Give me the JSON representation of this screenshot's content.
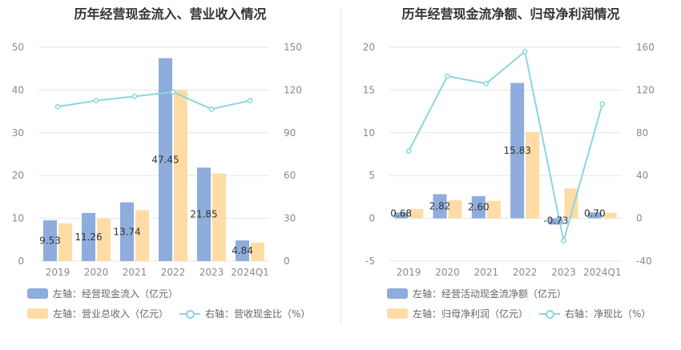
{
  "colors": {
    "bar1": "#8eacdc",
    "bar2": "#ffdca6",
    "line": "#8ad7de",
    "grid": "#e6e6e6",
    "tick": "#8a8a8a"
  },
  "chart_data": [
    {
      "type": "bar",
      "title": "历年经营现金流入、营业收入情况",
      "categories": [
        "2019",
        "2020",
        "2021",
        "2022",
        "2023",
        "2024Q1"
      ],
      "y_left": {
        "ticks": [
          "0",
          "10",
          "20",
          "30",
          "40",
          "50"
        ],
        "lim": [
          0,
          50
        ]
      },
      "y_right": {
        "ticks": [
          "0",
          "30",
          "60",
          "90",
          "120",
          "150"
        ],
        "lim": [
          0,
          150
        ]
      },
      "series": [
        {
          "name": "左轴：经营现金流入（亿元）",
          "axis": "left",
          "kind": "bar",
          "color": "#8eacdc",
          "values": [
            9.53,
            11.26,
            13.74,
            47.45,
            21.85,
            4.84
          ],
          "labels": [
            "9.53",
            "11.26",
            "13.74",
            "47.45",
            "21.85",
            "4.84"
          ]
        },
        {
          "name": "左轴：营业总收入（亿元）",
          "axis": "left",
          "kind": "bar",
          "color": "#ffdca6",
          "values": [
            8.8,
            10.0,
            11.9,
            40.0,
            20.5,
            4.3
          ]
        },
        {
          "name": "右轴：营收现金比（%）",
          "axis": "right",
          "kind": "line",
          "color": "#8ad7de",
          "values": [
            108.3,
            112.6,
            115.5,
            118.6,
            106.6,
            112.6
          ]
        }
      ],
      "legend": {
        "position": "bottom-left"
      }
    },
    {
      "type": "bar",
      "title": "历年经营现金流净额、归母净利润情况",
      "categories": [
        "2019",
        "2020",
        "2021",
        "2022",
        "2023",
        "2024Q1"
      ],
      "y_left": {
        "ticks": [
          "-5",
          "0",
          "5",
          "10",
          "15",
          "20"
        ],
        "lim": [
          -5,
          20
        ]
      },
      "y_right": {
        "ticks": [
          "-40",
          "0",
          "40",
          "80",
          "120",
          "160"
        ],
        "lim": [
          -40,
          160
        ]
      },
      "series": [
        {
          "name": "左轴：经营活动现金流净额（亿元）",
          "axis": "left",
          "kind": "bar",
          "color": "#8eacdc",
          "values": [
            0.68,
            2.82,
            2.6,
            15.83,
            -0.73,
            0.7
          ],
          "labels": [
            "0.68",
            "2.82",
            "2.60",
            "15.83",
            "-0.73",
            "0.70"
          ]
        },
        {
          "name": "左轴：归母净利润（亿元）",
          "axis": "left",
          "kind": "bar",
          "color": "#ffdca6",
          "values": [
            1.08,
            2.1,
            2.05,
            10.1,
            3.5,
            0.65
          ]
        },
        {
          "name": "右轴：净现比（%）",
          "axis": "right",
          "kind": "line",
          "color": "#8ad7de",
          "values": [
            63,
            133,
            126,
            156,
            -21,
            107
          ]
        }
      ],
      "legend": {
        "position": "bottom-left"
      }
    }
  ]
}
